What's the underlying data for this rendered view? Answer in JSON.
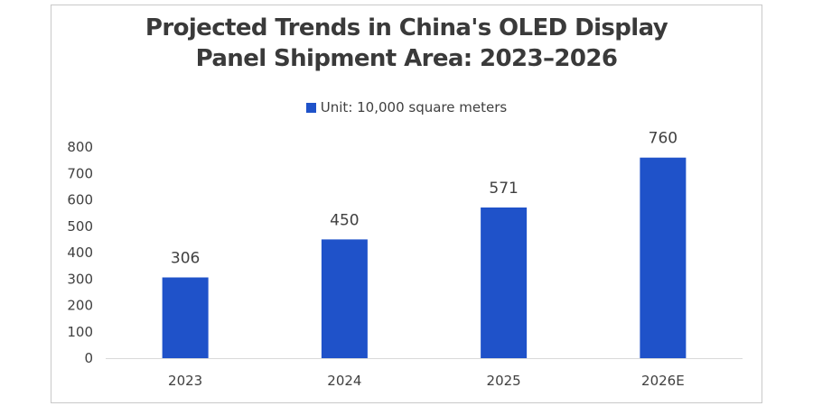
{
  "chart_data": {
    "type": "bar",
    "title": "Projected Trends in China's OLED Display Panel Shipment Area: 2023–2026",
    "title_lines": [
      "Projected Trends in China's OLED Display",
      "Panel Shipment Area: 2023–2026"
    ],
    "legend": {
      "label": "Unit: 10,000 square meters",
      "position": "top"
    },
    "categories": [
      "2023",
      "2024",
      "2025",
      "2026E"
    ],
    "series": [
      {
        "name": "Unit: 10,000 square meters",
        "values": [
          306,
          450,
          571,
          760
        ],
        "color": "#1f52c9"
      }
    ],
    "data_labels": [
      "306",
      "450",
      "571",
      "760"
    ],
    "xlabel": "",
    "ylabel": "",
    "ylim": [
      0,
      800
    ],
    "yticks": [
      0,
      100,
      200,
      300,
      400,
      500,
      600,
      700,
      800
    ],
    "grid": false
  }
}
